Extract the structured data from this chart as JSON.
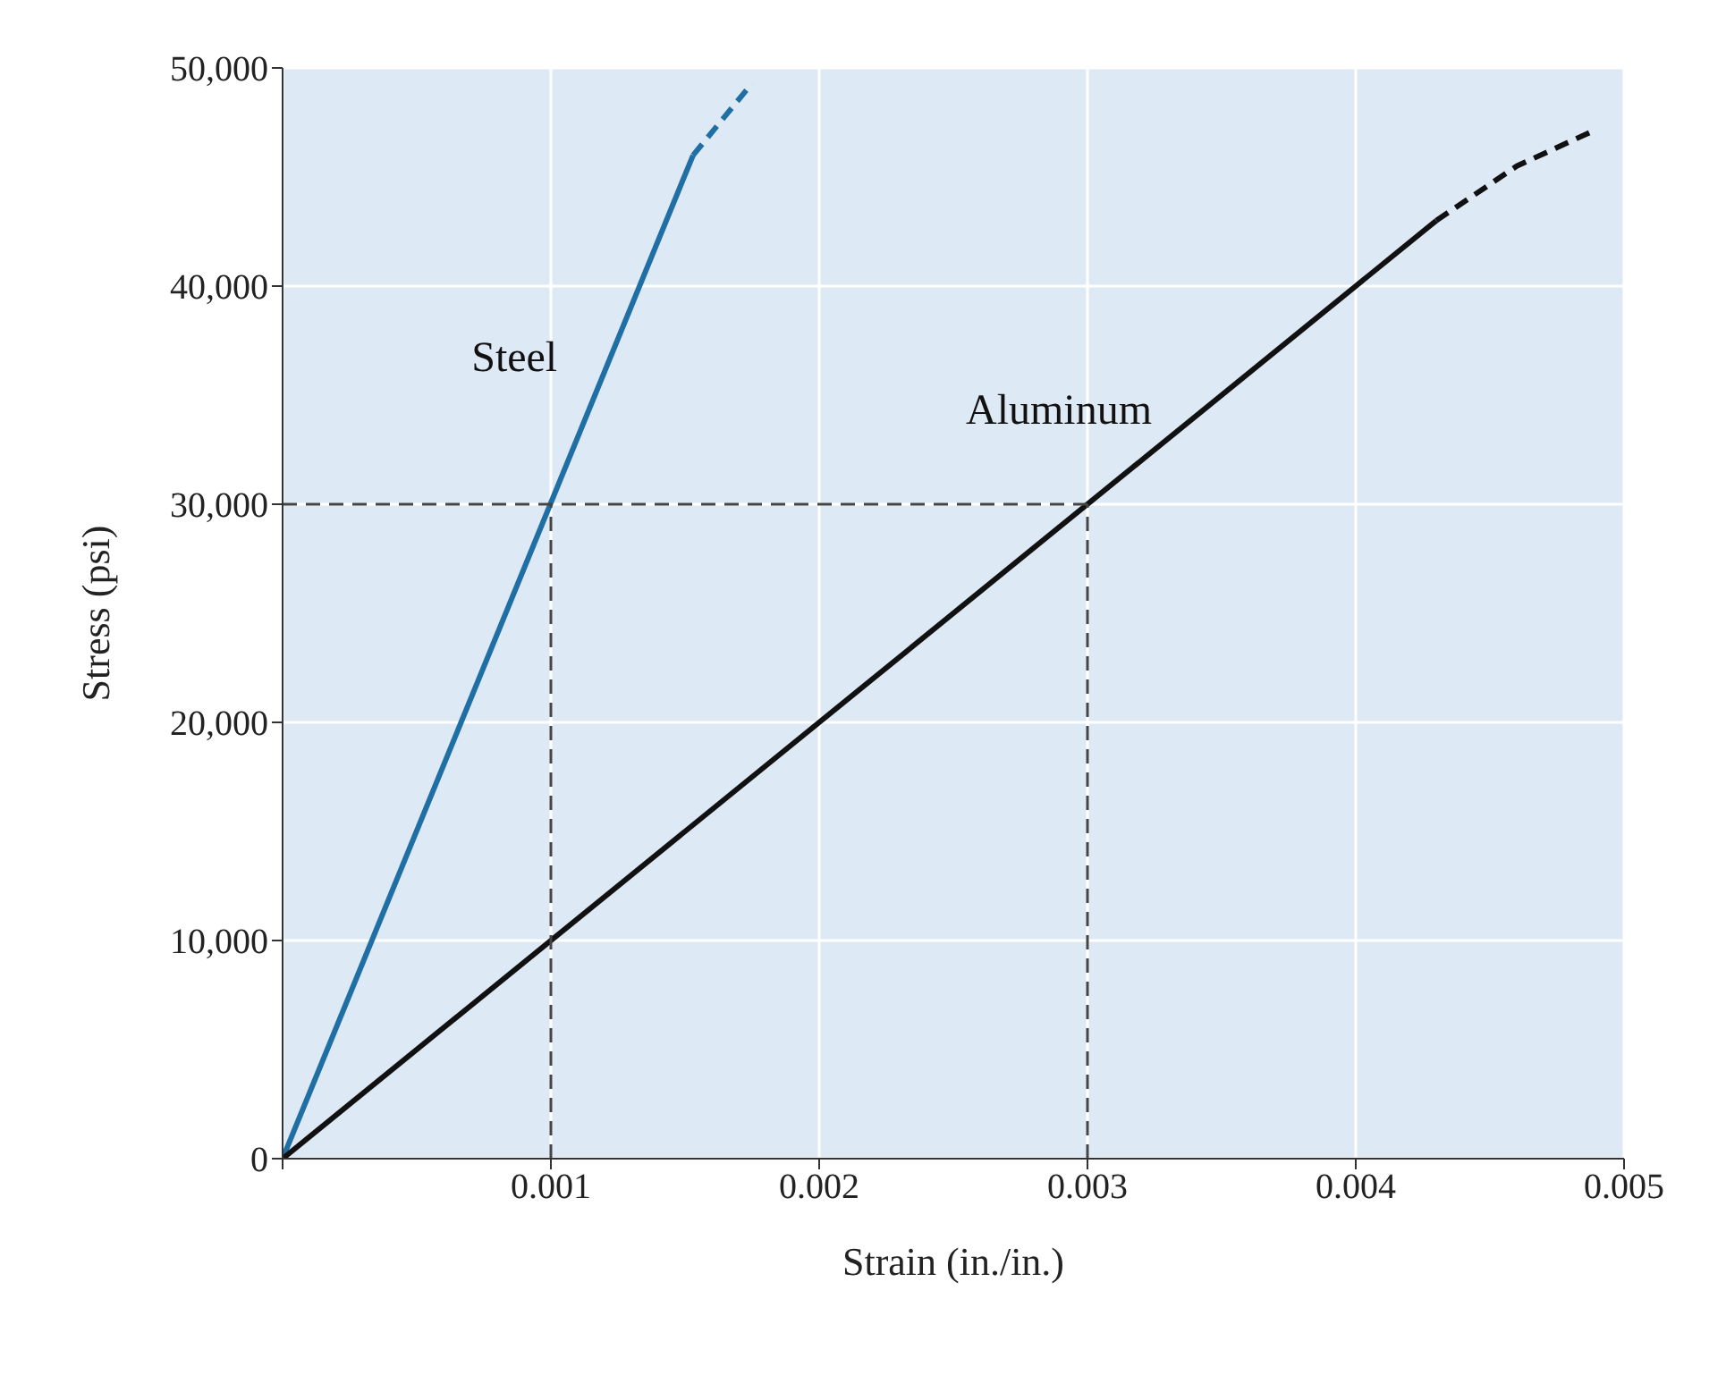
{
  "chart_data": {
    "type": "line",
    "xlabel": "Strain (in./in.)",
    "ylabel": "Stress (psi)",
    "xlim": [
      0,
      0.005
    ],
    "xticks": [
      {
        "value": 0,
        "label": null
      },
      0.001,
      0.002,
      0.003,
      0.004,
      0.005
    ],
    "ylim": [
      0,
      50000
    ],
    "yticks": [
      0,
      {
        "value": 10000,
        "label": "10,000"
      },
      {
        "value": 20000,
        "label": "20,000"
      },
      {
        "value": 30000,
        "label": "30,000"
      },
      {
        "value": 40000,
        "label": "40,000"
      },
      {
        "value": 50000,
        "label": "50,000"
      }
    ],
    "grid": true,
    "legend": false,
    "marker": "none",
    "series": [
      {
        "name": "Steel",
        "color": "#1f6fa5",
        "line_style": "solid",
        "x": [
          0,
          0.00153
        ],
        "values": [
          0,
          46000
        ]
      },
      {
        "color": "#1f6fa5",
        "line_style": "dashed",
        "x": [
          0.00153,
          0.00165,
          0.00175
        ],
        "values": [
          46000,
          47800,
          49300
        ]
      },
      {
        "name": "Aluminum",
        "color": "#111111",
        "line_style": "solid",
        "x": [
          0,
          0.0043
        ],
        "values": [
          0,
          43000
        ]
      },
      {
        "color": "#111111",
        "line_style": "dashed",
        "x": [
          0.0043,
          0.0046,
          0.0049
        ],
        "values": [
          43000,
          45500,
          47200
        ]
      },
      {
        "color": "#444444",
        "line_style": "dashed",
        "x": [
          0,
          0.003
        ],
        "values": [
          30000,
          30000
        ]
      },
      {
        "color": "#444444",
        "line_style": "dashed",
        "x": [
          0.001,
          0.001
        ],
        "values": [
          0,
          30000
        ]
      },
      {
        "color": "#444444",
        "line_style": "dashed",
        "x": [
          0.003,
          0.003
        ],
        "values": [
          0,
          30000
        ]
      }
    ]
  }
}
